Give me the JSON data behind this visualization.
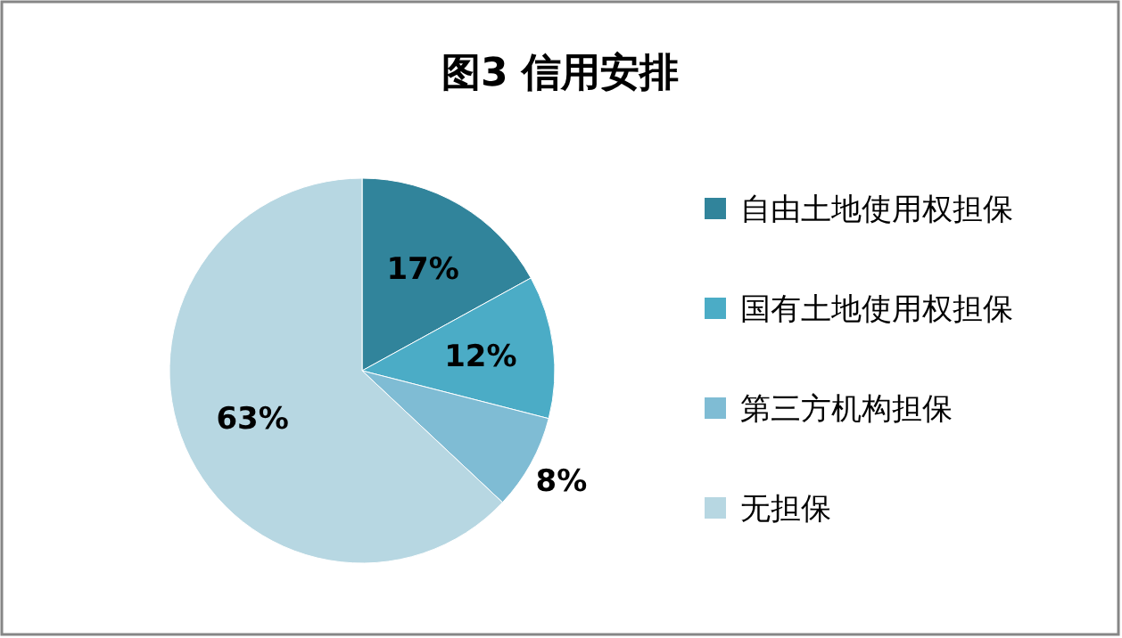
{
  "chart_data": {
    "type": "pie",
    "title": "图3  信用安排",
    "categories": [
      "自由土地使用权担保",
      "国有土地使用权担保",
      "第三方机构担保",
      "无担保"
    ],
    "values": [
      17,
      12,
      8,
      63
    ],
    "colors": [
      "#31849b",
      "#4bacc6",
      "#7fbcd4",
      "#b7d7e2"
    ],
    "value_labels": [
      "17%",
      "12%",
      "8%",
      "63%"
    ],
    "legend": "right"
  }
}
